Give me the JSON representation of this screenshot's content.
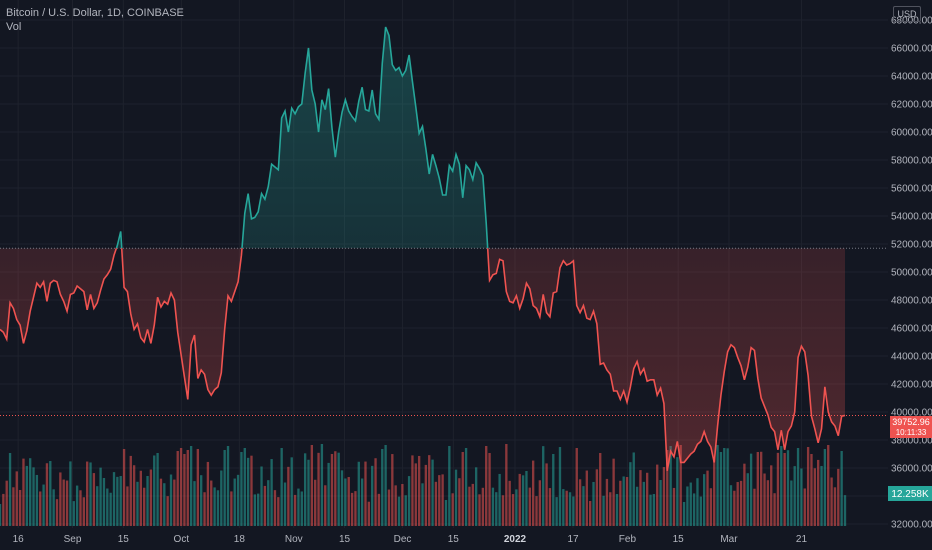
{
  "legend": {
    "title": "Bitcoin / U.S. Dollar, 1D, COINBASE",
    "vol_label": "Vol"
  },
  "currency": "USD",
  "last_price_label": "39752.96",
  "last_price_sub": "10:11:33",
  "volume_label": "12.258K",
  "colors": {
    "background": "#131722",
    "up": "#26a69a",
    "down": "#ef5350",
    "grid": "#1e222d",
    "text": "#b2b5be"
  },
  "chart_data": {
    "type": "line",
    "symbol": "Bitcoin / U.S. Dollar",
    "interval": "1D",
    "exchange": "COINBASE",
    "baseline": 51700,
    "ylim": [
      32000,
      69000
    ],
    "yticks": [
      32000,
      34000,
      36000,
      38000,
      40000,
      42000,
      44000,
      46000,
      48000,
      50000,
      52000,
      54000,
      56000,
      58000,
      60000,
      62000,
      64000,
      66000,
      68000
    ],
    "yticks_labels": [
      "32000.00",
      "34000.00",
      "36000.00",
      "38000.00",
      "40000.00",
      "42000.00",
      "44000.00",
      "46000.00",
      "48000.00",
      "50000.00",
      "52000.00",
      "54000.00",
      "56000.00",
      "58000.00",
      "60000.00",
      "62000.00",
      "64000.00",
      "66000.00",
      "68000.00"
    ],
    "xticks": [
      {
        "label": "16",
        "x": 5
      },
      {
        "label": "Sep",
        "x": 20
      },
      {
        "label": "15",
        "x": 34
      },
      {
        "label": "Oct",
        "x": 50
      },
      {
        "label": "18",
        "x": 66
      },
      {
        "label": "Nov",
        "x": 81
      },
      {
        "label": "15",
        "x": 95
      },
      {
        "label": "Dec",
        "x": 111
      },
      {
        "label": "15",
        "x": 125
      },
      {
        "label": "2022",
        "x": 142,
        "bold": true
      },
      {
        "label": "17",
        "x": 158
      },
      {
        "label": "Feb",
        "x": 173
      },
      {
        "label": "15",
        "x": 187
      },
      {
        "label": "Mar",
        "x": 201
      },
      {
        "label": "21",
        "x": 221
      }
    ],
    "grid": true,
    "values": [
      45900,
      45700,
      45200,
      47800,
      47400,
      46600,
      46200,
      44900,
      45800,
      47200,
      48200,
      49200,
      48900,
      49300,
      47900,
      49200,
      49400,
      49300,
      48400,
      47900,
      47200,
      48400,
      48500,
      49000,
      48800,
      48600,
      47300,
      48400,
      47400,
      47800,
      48700,
      49500,
      49800,
      50200,
      51200,
      51900,
      52900,
      48900,
      48600,
      47000,
      45900,
      46300,
      45300,
      45000,
      45900,
      44900,
      46200,
      48200,
      47500,
      47900,
      47700,
      48500,
      48000,
      45700,
      44100,
      42500,
      40900,
      44800,
      45500,
      42400,
      43000,
      42700,
      41600,
      41200,
      41600,
      41800,
      42800,
      45900,
      48300,
      47900,
      48600,
      49300,
      51200,
      54200,
      55600,
      53800,
      53900,
      54300,
      55600,
      55200,
      56100,
      57700,
      57500,
      57300,
      61000,
      61500,
      60000,
      61700,
      61300,
      61800,
      62000,
      64200,
      66000,
      63000,
      62000,
      60000,
      62300,
      61600,
      63100,
      60300,
      58200,
      60000,
      61400,
      62300,
      61500,
      61100,
      60800,
      62200,
      63200,
      61600,
      61500,
      63000,
      61300,
      60900,
      64900,
      67500,
      66900,
      64800,
      64400,
      64600,
      64000,
      64400,
      65500,
      63600,
      61800,
      59900,
      60400,
      58800,
      57000,
      58400,
      57600,
      56700,
      55500,
      55500,
      57600,
      57200,
      58400,
      57700,
      55300,
      57600,
      57300,
      56600,
      57800,
      57400,
      56900,
      53500,
      49400,
      49800,
      49900,
      50900,
      50800,
      48600,
      47900,
      47800,
      48300,
      47400,
      48100,
      49200,
      48800,
      47600,
      47400,
      46800,
      48400,
      47100,
      46800,
      48500,
      48600,
      50300,
      50800,
      50500,
      50600,
      50800,
      47600,
      47100,
      47600,
      46700,
      46600,
      47200,
      46300,
      43400,
      43500,
      43000,
      42700,
      41500,
      41500,
      40900,
      41500,
      40700,
      41800,
      43100,
      43600,
      42700,
      43100,
      42200,
      42300,
      42300,
      41200,
      41700,
      40600,
      35800,
      37200,
      36800,
      37900,
      36400,
      36400,
      36700,
      37000,
      37200,
      37700,
      37900,
      38600,
      37900,
      37500,
      36400,
      39000,
      41200,
      42900,
      44300,
      44800,
      44600,
      43900,
      43300,
      42300,
      43200,
      44600,
      44400,
      42400,
      41000,
      40400,
      39800,
      38900,
      38600,
      37300,
      38700,
      37300,
      38600,
      39000,
      40000,
      43900,
      44700,
      44300,
      42600,
      39700,
      38800,
      37800,
      38800,
      41800,
      40000,
      39300,
      39000,
      38300,
      39700,
      39753
    ],
    "volume_color_rule": "up/down vs previous close"
  }
}
